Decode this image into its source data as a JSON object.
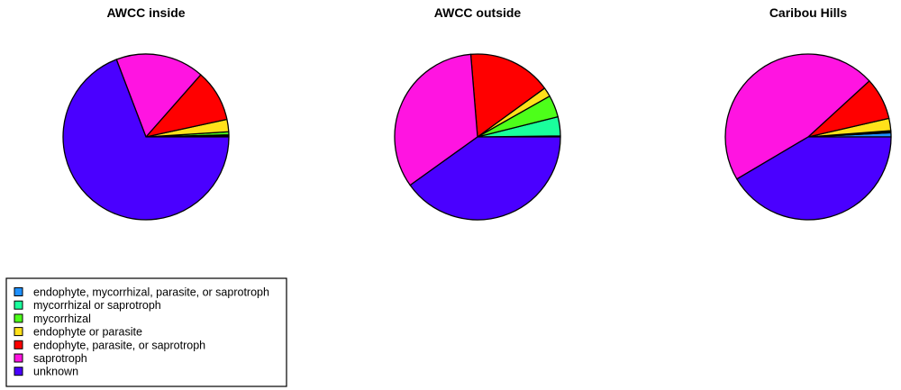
{
  "chart_data": [
    {
      "type": "pie",
      "title": "AWCC inside",
      "slices": [
        {
          "label": "endophyte, mycorrhizal, parasite, or saprotroph",
          "value": 0.2
        },
        {
          "label": "mycorrhizal or saprotroph",
          "value": 0.2
        },
        {
          "label": "mycorrhizal",
          "value": 0.6
        },
        {
          "label": "endophyte or parasite",
          "value": 2.4
        },
        {
          "label": "endophyte, parasite, or saprotroph",
          "value": 10.1
        },
        {
          "label": "saprotroph",
          "value": 17.3
        },
        {
          "label": "unknown",
          "value": 69.2
        }
      ]
    },
    {
      "type": "pie",
      "title": "AWCC outside",
      "slices": [
        {
          "label": "endophyte, mycorrhizal, parasite, or saprotroph",
          "value": 0.2
        },
        {
          "label": "mycorrhizal or saprotroph",
          "value": 3.7
        },
        {
          "label": "mycorrhizal",
          "value": 4.3
        },
        {
          "label": "endophyte or parasite",
          "value": 1.8
        },
        {
          "label": "endophyte, parasite, or saprotroph",
          "value": 16.3
        },
        {
          "label": "saprotroph",
          "value": 33.6
        },
        {
          "label": "unknown",
          "value": 40.1
        }
      ]
    },
    {
      "type": "pie",
      "title": "Caribou Hills",
      "slices": [
        {
          "label": "endophyte, mycorrhizal, parasite, or saprotroph",
          "value": 0.8
        },
        {
          "label": "mycorrhizal or saprotroph",
          "value": 0.2
        },
        {
          "label": "mycorrhizal",
          "value": 0.2
        },
        {
          "label": "endophyte or parasite",
          "value": 2.4
        },
        {
          "label": "endophyte, parasite, or saprotroph",
          "value": 8.2
        },
        {
          "label": "saprotroph",
          "value": 46.7
        },
        {
          "label": "unknown",
          "value": 41.5
        }
      ]
    }
  ],
  "legend": {
    "items": [
      {
        "label": "endophyte, mycorrhizal, parasite, or saprotroph",
        "color": "#1e90ff"
      },
      {
        "label": "mycorrhizal or saprotroph",
        "color": "#1aff9c"
      },
      {
        "label": "mycorrhizal",
        "color": "#4dff1a"
      },
      {
        "label": "endophyte or parasite",
        "color": "#ffe11a"
      },
      {
        "label": "endophyte, parasite, or saprotroph",
        "color": "#ff0000"
      },
      {
        "label": "saprotroph",
        "color": "#ff14e1"
      },
      {
        "label": "unknown",
        "color": "#4a00ff"
      }
    ]
  }
}
